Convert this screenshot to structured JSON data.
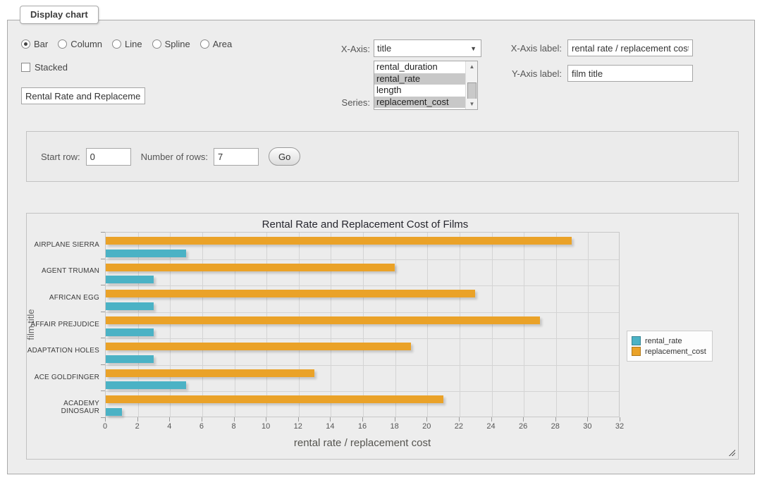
{
  "window": {
    "legend": "Display chart"
  },
  "controls": {
    "chart_types": [
      {
        "label": "Bar",
        "selected": true
      },
      {
        "label": "Column",
        "selected": false
      },
      {
        "label": "Line",
        "selected": false
      },
      {
        "label": "Spline",
        "selected": false
      },
      {
        "label": "Area",
        "selected": false
      }
    ],
    "stacked": {
      "label": "Stacked",
      "checked": false
    },
    "title_input": {
      "value": "Rental Rate and Replacement Cost of Films"
    },
    "x_axis": {
      "label": "X-Axis:",
      "selected": "title"
    },
    "series": {
      "label": "Series:",
      "options": [
        {
          "label": "rental_duration",
          "selected": false
        },
        {
          "label": "rental_rate",
          "selected": true
        },
        {
          "label": "length",
          "selected": false
        },
        {
          "label": "replacement_cost",
          "selected": true
        }
      ]
    },
    "x_axis_label": {
      "label": "X-Axis label:",
      "value": "rental rate / replacement cost"
    },
    "y_axis_label": {
      "label": "Y-Axis label:",
      "value": "film title"
    }
  },
  "rows_panel": {
    "start_row_label": "Start row:",
    "start_row_value": "0",
    "num_rows_label": "Number of rows:",
    "num_rows_value": "7",
    "go_label": "Go"
  },
  "chart_data": {
    "type": "bar",
    "orientation": "horizontal",
    "title": "Rental Rate and Replacement Cost of Films",
    "categories": [
      "AIRPLANE SIERRA",
      "AGENT TRUMAN",
      "AFRICAN EGG",
      "AFFAIR PREJUDICE",
      "ADAPTATION HOLES",
      "ACE GOLDFINGER",
      "ACADEMY DINOSAUR"
    ],
    "series": [
      {
        "name": "rental_rate",
        "color": "#4bb2c5",
        "values": [
          4.99,
          2.99,
          2.99,
          2.99,
          2.99,
          4.99,
          0.99
        ]
      },
      {
        "name": "replacement_cost",
        "color": "#eaa228",
        "values": [
          28.99,
          17.99,
          22.99,
          26.99,
          18.99,
          12.99,
          20.99
        ]
      }
    ],
    "xlabel": "rental rate / replacement cost",
    "ylabel": "film title",
    "xlim": [
      0,
      32
    ],
    "xticks": [
      0,
      2,
      4,
      6,
      8,
      10,
      12,
      14,
      16,
      18,
      20,
      22,
      24,
      26,
      28,
      30,
      32
    ],
    "grid": true,
    "legend_position": "right"
  },
  "icons": {
    "select_arrow": "▼",
    "scroll_up": "▲",
    "scroll_down": "▼"
  }
}
